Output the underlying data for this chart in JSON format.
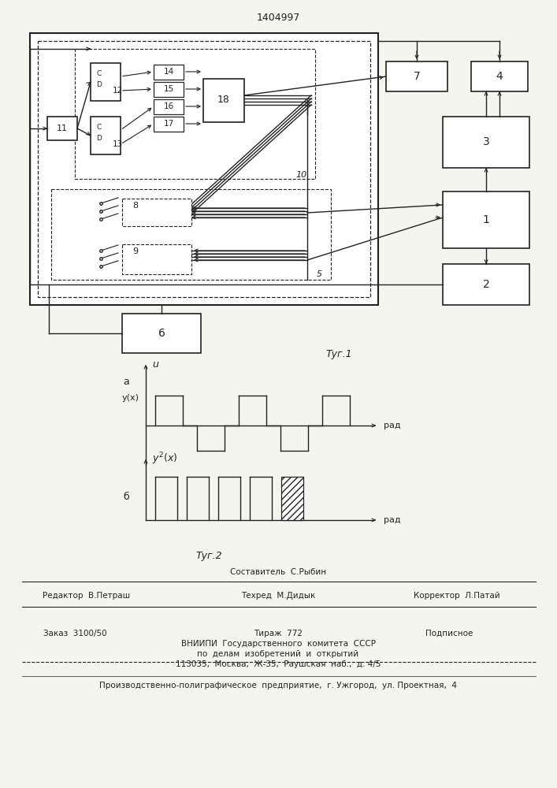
{
  "title": "1404997",
  "bg": "#f5f5f0",
  "lc": "#222222",
  "fig1_caption": "Τуг.1",
  "fig2_caption": "Τуг.2",
  "text_sostavitel": "Составитель  С.Рыбин",
  "text_redaktor": "Редактор  В.Петраш",
  "text_tehred": "Техред  М.Дидык",
  "text_korrektor": "Корректор  Л.Патай",
  "text_zakaz": "Заказ  3100/50",
  "text_tirazh": "Тираж  772",
  "text_podpisnoe": "Подписное",
  "text_vniip1": "ВНИИПИ  Государственного  комитета  СССР",
  "text_vniip2": "по  делам  изобретений  и  открытий",
  "text_vniip3": "113035,  Москва,  Ж-35,  Раушская  наб.,  д. 4/5",
  "text_zavod": "Производственно-полиграфическое  предприятие,  г. Ужгород,  ул. Проектная,  4"
}
